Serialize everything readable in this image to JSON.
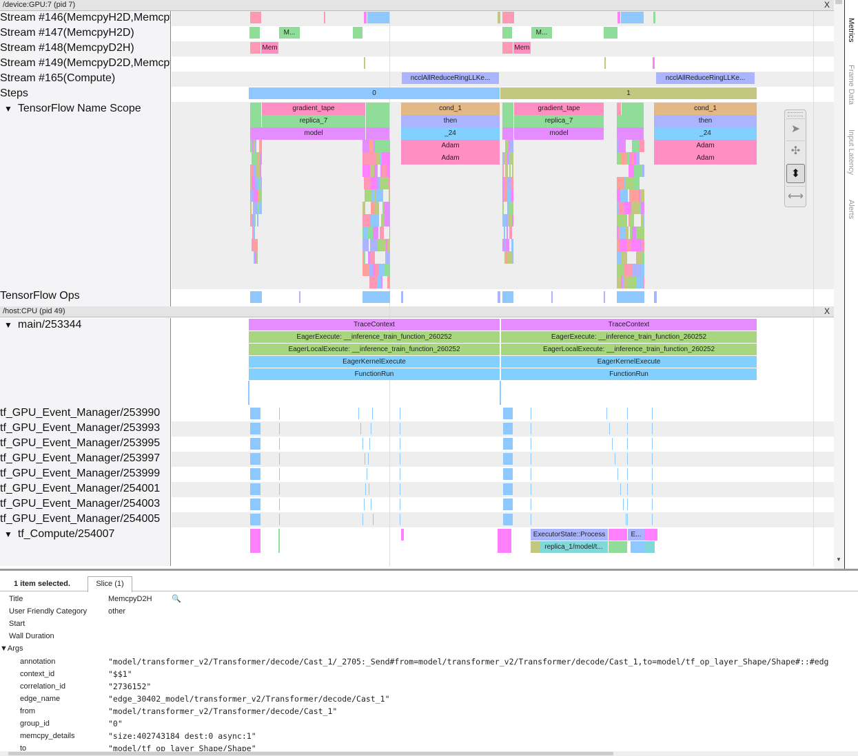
{
  "gpu_header": {
    "title": "/device:GPU:7 (pid 7)",
    "close": "X"
  },
  "host_header": {
    "title": "/host:CPU (pid 49)",
    "close": "X"
  },
  "gpu_tracks": [
    "Stream #146(MemcpyH2D,Memcpy",
    "Stream #147(MemcpyH2D)",
    "Stream #148(MemcpyD2H)",
    "Stream #149(MemcpyD2D,Memcpy",
    "Stream #165(Compute)",
    "Steps",
    "TensorFlow Name Scope",
    "TensorFlow Ops"
  ],
  "host_tracks": [
    "main/253344",
    "tf_GPU_Event_Manager/253990",
    "tf_GPU_Event_Manager/253993",
    "tf_GPU_Event_Manager/253995",
    "tf_GPU_Event_Manager/253997",
    "tf_GPU_Event_Manager/253999",
    "tf_GPU_Event_Manager/254001",
    "tf_GPU_Event_Manager/254003",
    "tf_GPU_Event_Manager/254005",
    "tf_Compute/254007"
  ],
  "slice_labels": {
    "m": "M...",
    "mem": "Mem",
    "nccl": "ncclAllReduceRingLLKe...",
    "step0": "0",
    "step1": "1",
    "gradient_tape": "gradient_tape",
    "replica_7": "replica_7",
    "model": "model",
    "cond_1": "cond_1",
    "then": "then",
    "_24": "_24",
    "adam": "Adam",
    "trace_context": "TraceContext",
    "eager_execute": "EagerExecute: __inference_train_function_260252",
    "eager_local_execute": "EagerLocalExecute: __inference_train_function_260252",
    "eager_kernel_execute": "EagerKernelExecute",
    "function_run": "FunctionRun",
    "executor_process": "ExecutorState::Process",
    "e_short": "E...",
    "replica_1": "replica_1/model/t..."
  },
  "colors": {
    "pink": "#ff99b3",
    "green": "#90dd9a",
    "blue": "#8fc8ff",
    "magenta": "#ff80ff",
    "violet": "#e58cff",
    "tan": "#e2b887",
    "periwinkle": "#aab4ff",
    "sky": "#82d0ff",
    "rose": "#ff8fc3",
    "olive": "#c4c77f",
    "lime": "#a8d67e",
    "teal": "#80d8d8",
    "salmon": "#ffa09a"
  },
  "side_tabs": [
    "Metrics",
    "Frame Data",
    "Input Latency",
    "Alerts"
  ],
  "tools": [
    "select-tool",
    "pan-tool",
    "zoom-tool",
    "timing-tool"
  ],
  "details": {
    "selected": "1 item selected.",
    "tab": "Slice (1)",
    "fields": [
      {
        "k": "Title",
        "v": "MemcpyD2H"
      },
      {
        "k": "User Friendly Category",
        "v": "other"
      },
      {
        "k": "Start",
        "v": ""
      },
      {
        "k": "Wall Duration",
        "v": ""
      }
    ],
    "args_label": "▼Args",
    "args": [
      {
        "k": "annotation",
        "v": "\"model/transformer_v2/Transformer/decode/Cast_1/_2705:_Send#from=model/transformer_v2/Transformer/decode/Cast_1,to=model/tf_op_layer_Shape/Shape#::#edg"
      },
      {
        "k": "context_id",
        "v": "\"$$1\""
      },
      {
        "k": "correlation_id",
        "v": "\"2736152\""
      },
      {
        "k": "edge_name",
        "v": "\"edge_30402_model/transformer_v2/Transformer/decode/Cast_1\""
      },
      {
        "k": "from",
        "v": "\"model/transformer_v2/Transformer/decode/Cast_1\""
      },
      {
        "k": "group_id",
        "v": "\"0\""
      },
      {
        "k": "memcpy_details",
        "v": "\"size:402743184 dest:0 async:1\""
      },
      {
        "k": "to",
        "v": "\"model/tf_op_layer_Shape/Shape\""
      }
    ]
  }
}
